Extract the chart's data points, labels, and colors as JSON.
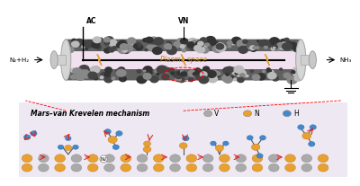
{
  "bg_color": "#ffffff",
  "plasma_text": "Plasma space",
  "ac_label": "AC",
  "vn_label": "VN",
  "inlet_label": "N₂+H₂",
  "outlet_label": "NH₃",
  "mechanism_title": "Mars–van Krevelen mechanism",
  "legend_v": "V",
  "legend_n": "N",
  "legend_h": "H",
  "color_V": "#aaaaaa",
  "color_N": "#e8a030",
  "color_H": "#4488cc",
  "color_arrow": "#dd2222",
  "lightning_color": "#e8a030"
}
